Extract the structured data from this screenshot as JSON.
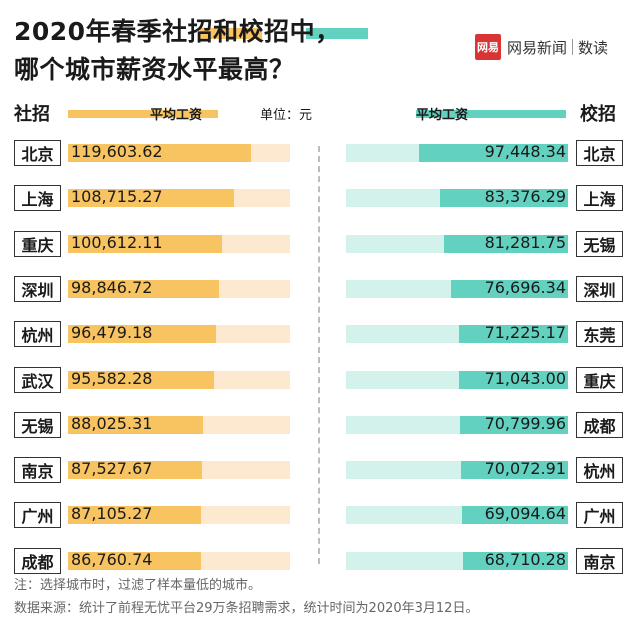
{
  "title": {
    "line1_a": "2020年春季",
    "line1_b": "社招",
    "line1_c": "和",
    "line1_d": "校招",
    "line1_e": "中，",
    "line2": "哪个城市薪资水平最高？"
  },
  "brand": {
    "logo": "网易",
    "name": "网易新闻",
    "sub": "数读"
  },
  "header": {
    "left_label": "社招",
    "right_label": "校招",
    "avg_left": "平均工资",
    "avg_right": "平均工资",
    "unit": "单位：元"
  },
  "colors": {
    "social": "#f8c361",
    "social_track": "#fde9cf",
    "campus": "#63d1c0",
    "campus_track": "#d3f2ec"
  },
  "chart_data": [
    {
      "type": "bar",
      "orientation": "horizontal",
      "title": "社招",
      "ylabel": "平均工资",
      "unit": "元",
      "xlim": [
        0,
        145000
      ],
      "categories": [
        "北京",
        "上海",
        "重庆",
        "深圳",
        "杭州",
        "武汉",
        "无锡",
        "南京",
        "广州",
        "成都"
      ],
      "values": [
        119603.62,
        108715.27,
        100612.11,
        98846.72,
        96479.18,
        95582.28,
        88025.31,
        87527.67,
        87105.27,
        86760.74
      ],
      "labels": [
        "119,603.62",
        "108,715.27",
        "100,612.11",
        "98,846.72",
        "96,479.18",
        "95,582.28",
        "88,025.31",
        "87,527.67",
        "87,105.27",
        "86,760.74"
      ]
    },
    {
      "type": "bar",
      "orientation": "horizontal",
      "title": "校招",
      "ylabel": "平均工资",
      "unit": "元",
      "xlim": [
        0,
        145000
      ],
      "categories": [
        "北京",
        "上海",
        "无锡",
        "深圳",
        "东莞",
        "重庆",
        "成都",
        "杭州",
        "广州",
        "南京"
      ],
      "values": [
        97448.34,
        83376.29,
        81281.75,
        76696.34,
        71225.17,
        71043.0,
        70799.96,
        70072.91,
        69094.64,
        68710.28
      ],
      "labels": [
        "97,448.34",
        "83,376.29",
        "81,281.75",
        "76,696.34",
        "71,225.17",
        "71,043.00",
        "70,799.96",
        "70,072.91",
        "69,094.64",
        "68,710.28"
      ]
    }
  ],
  "notes": {
    "note1": "注：选择城市时，过滤了样本量低的城市。",
    "note2": "数据来源：统计了前程无忧平台29万条招聘需求，统计时间为2020年3月12日。"
  }
}
